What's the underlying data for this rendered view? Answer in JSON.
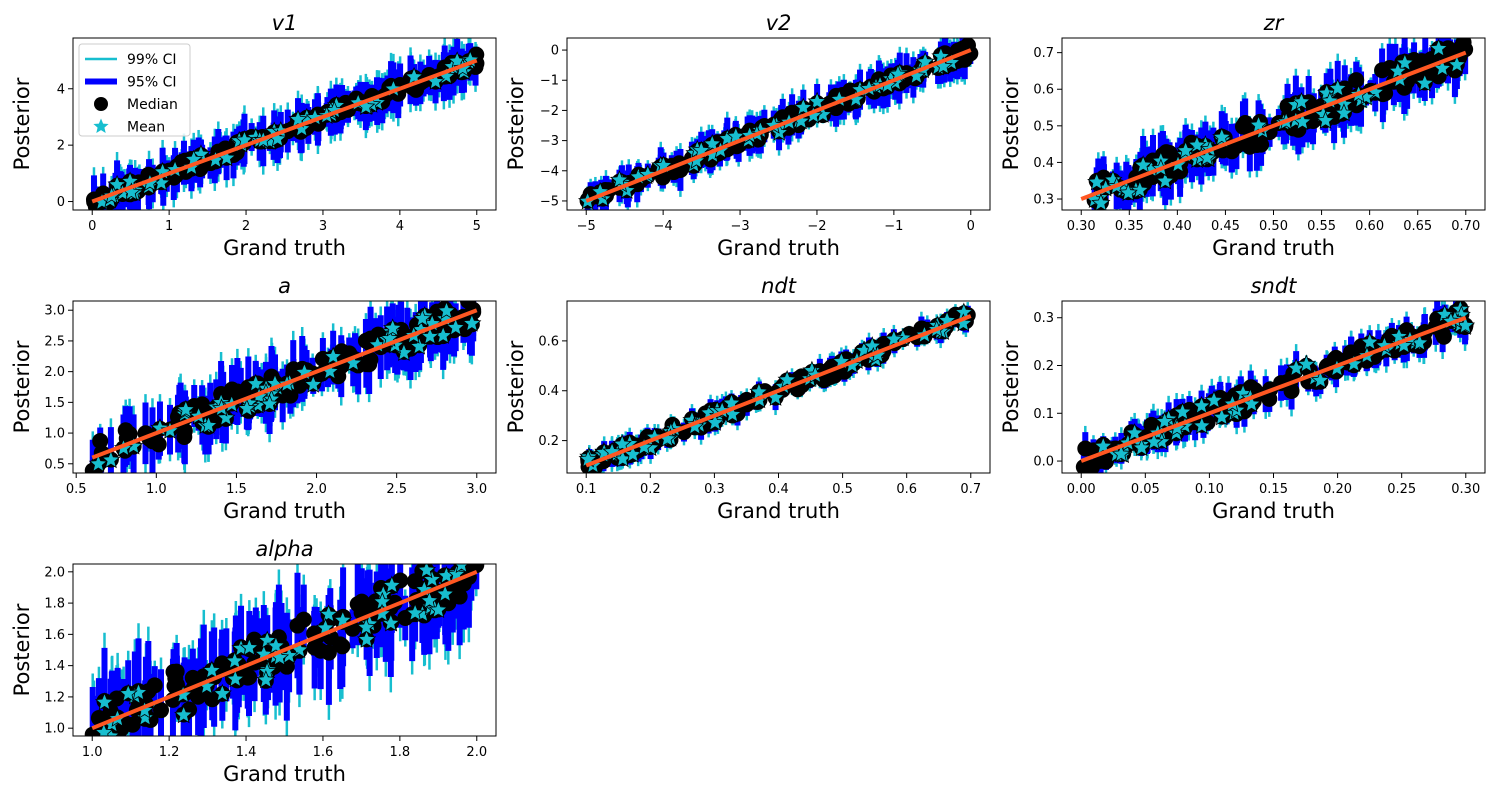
{
  "figure": {
    "colors": {
      "ci99": "#17becf",
      "ci95": "#0000ff",
      "median": "#000000",
      "mean": "#17becf",
      "identity_line": "#ff5722",
      "background": "#ffffff"
    }
  },
  "legend": {
    "placement": "top-left of first panel",
    "items": [
      {
        "label": "99% CI",
        "marker": "line",
        "color": "#17becf"
      },
      {
        "label": "95% CI",
        "marker": "thick-line",
        "color": "#0000ff"
      },
      {
        "label": "Median",
        "marker": "circle",
        "color": "#000000"
      },
      {
        "label": "Mean",
        "marker": "star",
        "color": "#17becf"
      }
    ]
  },
  "chart_data": [
    {
      "type": "scatter",
      "title": "v1",
      "xlabel": "Grand truth",
      "ylabel": "Posterior",
      "xlim": [
        -0.25,
        5.25
      ],
      "ylim": [
        -0.3,
        5.8
      ],
      "xticks": [
        0,
        1,
        2,
        3,
        4,
        5
      ],
      "xtick_labels": [
        "0",
        "1",
        "2",
        "3",
        "4",
        "5"
      ],
      "yticks": [
        0,
        2,
        4
      ],
      "ytick_labels": [
        "0",
        "2",
        "4"
      ],
      "truth_range": [
        0,
        5
      ],
      "noise_fraction": 0.05,
      "ci95_half_width": 0.9,
      "ci99_half_width": 1.2,
      "identity_line": [
        [
          0,
          0
        ],
        [
          5,
          5
        ]
      ],
      "legend": true
    },
    {
      "type": "scatter",
      "title": "v2",
      "xlabel": "Grand truth",
      "ylabel": "Posterior",
      "xlim": [
        -5.25,
        0.25
      ],
      "ylim": [
        -5.3,
        0.4
      ],
      "xticks": [
        -5,
        -4,
        -3,
        -2,
        -1,
        0
      ],
      "xtick_labels": [
        "−5",
        "−4",
        "−3",
        "−2",
        "−1",
        "0"
      ],
      "yticks": [
        -5,
        -4,
        -3,
        -2,
        -1,
        0
      ],
      "ytick_labels": [
        "−5",
        "−4",
        "−3",
        "−2",
        "−1",
        "0"
      ],
      "truth_range": [
        -5,
        0
      ],
      "noise_fraction": 0.05,
      "ci95_half_width": 0.7,
      "ci99_half_width": 0.9,
      "identity_line": [
        [
          -5,
          -5
        ],
        [
          0,
          0
        ]
      ],
      "legend": false
    },
    {
      "type": "scatter",
      "title": "zr",
      "xlabel": "Grand truth",
      "ylabel": "Posterior",
      "xlim": [
        0.28,
        0.72
      ],
      "ylim": [
        0.27,
        0.74
      ],
      "xticks": [
        0.3,
        0.35,
        0.4,
        0.45,
        0.5,
        0.55,
        0.6,
        0.65,
        0.7
      ],
      "xtick_labels": [
        "0.30",
        "0.35",
        "0.40",
        "0.45",
        "0.50",
        "0.55",
        "0.60",
        "0.65",
        "0.70"
      ],
      "yticks": [
        0.3,
        0.4,
        0.5,
        0.6,
        0.7
      ],
      "ytick_labels": [
        "0.3",
        "0.4",
        "0.5",
        "0.6",
        "0.7"
      ],
      "truth_range": [
        0.3,
        0.7
      ],
      "noise_fraction": 0.1,
      "ci95_half_width": 0.08,
      "ci99_half_width": 0.1,
      "identity_line": [
        [
          0.3,
          0.3
        ],
        [
          0.7,
          0.7
        ]
      ],
      "legend": false
    },
    {
      "type": "scatter",
      "title": "a",
      "xlabel": "Grand truth",
      "ylabel": "Posterior",
      "xlim": [
        0.48,
        3.12
      ],
      "ylim": [
        0.35,
        3.15
      ],
      "xticks": [
        0.5,
        1.0,
        1.5,
        2.0,
        2.5,
        3.0
      ],
      "xtick_labels": [
        "0.5",
        "1.0",
        "1.5",
        "2.0",
        "2.5",
        "3.0"
      ],
      "yticks": [
        0.5,
        1.0,
        1.5,
        2.0,
        2.5,
        3.0
      ],
      "ytick_labels": [
        "0.5",
        "1.0",
        "1.5",
        "2.0",
        "2.5",
        "3.0"
      ],
      "truth_range": [
        0.6,
        3.0
      ],
      "noise_fraction": 0.1,
      "ci95_half_width": 0.55,
      "ci99_half_width": 0.7,
      "identity_line": [
        [
          0.6,
          0.6
        ],
        [
          3.0,
          3.0
        ]
      ],
      "legend": false
    },
    {
      "type": "scatter",
      "title": "ndt",
      "xlabel": "Grand truth",
      "ylabel": "Posterior",
      "xlim": [
        0.07,
        0.73
      ],
      "ylim": [
        0.07,
        0.76
      ],
      "xticks": [
        0.1,
        0.2,
        0.3,
        0.4,
        0.5,
        0.6,
        0.7
      ],
      "xtick_labels": [
        "0.1",
        "0.2",
        "0.3",
        "0.4",
        "0.5",
        "0.6",
        "0.7"
      ],
      "yticks": [
        0.2,
        0.4,
        0.6
      ],
      "ytick_labels": [
        "0.2",
        "0.4",
        "0.6"
      ],
      "truth_range": [
        0.1,
        0.7
      ],
      "noise_fraction": 0.05,
      "ci95_half_width": 0.05,
      "ci99_half_width": 0.07,
      "identity_line": [
        [
          0.1,
          0.1
        ],
        [
          0.7,
          0.7
        ]
      ],
      "legend": false
    },
    {
      "type": "scatter",
      "title": "sndt",
      "xlabel": "Grand truth",
      "ylabel": "Posterior",
      "xlim": [
        -0.015,
        0.315
      ],
      "ylim": [
        -0.025,
        0.335
      ],
      "xticks": [
        0.0,
        0.05,
        0.1,
        0.15,
        0.2,
        0.25,
        0.3
      ],
      "xtick_labels": [
        "0.00",
        "0.05",
        "0.10",
        "0.15",
        "0.20",
        "0.25",
        "0.30"
      ],
      "yticks": [
        0.0,
        0.1,
        0.2,
        0.3
      ],
      "ytick_labels": [
        "0.0",
        "0.1",
        "0.2",
        "0.3"
      ],
      "truth_range": [
        0.0,
        0.3
      ],
      "noise_fraction": 0.08,
      "ci95_half_width": 0.04,
      "ci99_half_width": 0.055,
      "identity_line": [
        [
          0.0,
          0.0
        ],
        [
          0.3,
          0.3
        ]
      ],
      "legend": false
    },
    {
      "type": "scatter",
      "title": "alpha",
      "xlabel": "Grand truth",
      "ylabel": "Posterior",
      "xlim": [
        0.95,
        2.05
      ],
      "ylim": [
        0.95,
        2.05
      ],
      "xticks": [
        1.0,
        1.2,
        1.4,
        1.6,
        1.8,
        2.0
      ],
      "xtick_labels": [
        "1.0",
        "1.2",
        "1.4",
        "1.6",
        "1.8",
        "2.0"
      ],
      "yticks": [
        1.0,
        1.2,
        1.4,
        1.6,
        1.8,
        2.0
      ],
      "ytick_labels": [
        "1.0",
        "1.2",
        "1.4",
        "1.6",
        "1.8",
        "2.0"
      ],
      "truth_range": [
        1.0,
        2.0
      ],
      "noise_fraction": 0.15,
      "ci95_half_width": 0.35,
      "ci99_half_width": 0.45,
      "identity_line": [
        [
          1.0,
          1.0
        ],
        [
          2.0,
          2.0
        ]
      ],
      "legend": false
    }
  ]
}
